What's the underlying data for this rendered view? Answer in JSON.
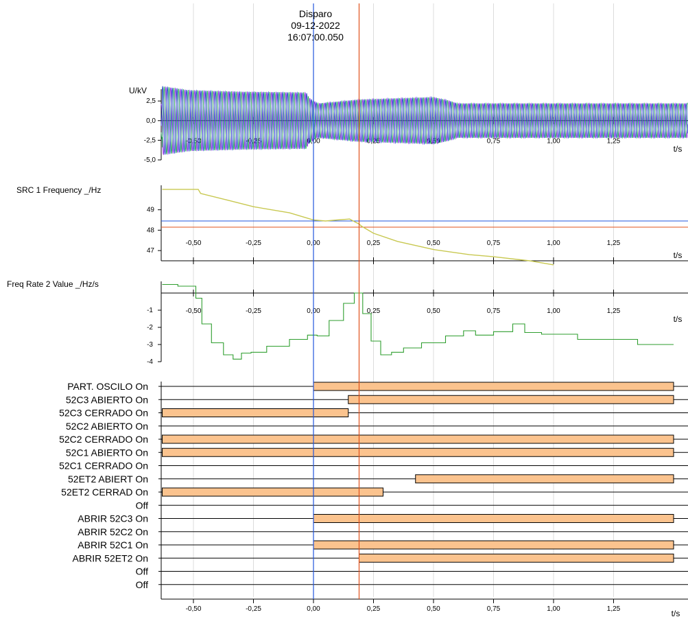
{
  "trigger": {
    "label": "Disparo",
    "date": "09-12-2022",
    "time": "16:07:00.050"
  },
  "x_unit": "t/s",
  "x_ticks": [
    "-0,50",
    "-0,25",
    "0,00",
    "0,25",
    "0,50",
    "0,75",
    "1,00",
    "1,25"
  ],
  "colors": {
    "cursor_blue": "#2255dd",
    "cursor_red": "#e0501a",
    "voltage_a": "#8a2be2",
    "voltage_b": "#22aa55",
    "voltage_c": "#2244cc",
    "frequency": "#c8c850",
    "freq_rate": "#2e9e2e",
    "digital_bar": "#fbc38e",
    "grid": "#dcdcdc"
  },
  "chart_data": [
    {
      "type": "line",
      "ylabel": "U/kV",
      "xlabel": "t/s",
      "ylim": [
        -5.0,
        4.0
      ],
      "y_ticks": [
        {
          "v": 2.5,
          "label": "2,5"
        },
        {
          "v": 0.0,
          "label": "0,0"
        },
        {
          "v": -2.5,
          "label": "-2,5"
        },
        {
          "v": -5.0,
          "label": "-5,0"
        }
      ],
      "cursors": [
        0.0,
        0.19
      ],
      "envelope": {
        "t": [
          -0.63,
          -0.52,
          -0.3,
          -0.03,
          -0.02,
          0.0,
          0.02,
          0.19,
          0.5,
          0.56,
          0.6,
          1.5
        ],
        "amp": [
          4.4,
          3.9,
          3.7,
          3.6,
          3.0,
          2.5,
          2.2,
          2.7,
          3.0,
          2.6,
          2.2,
          2.2
        ]
      },
      "series": []
    },
    {
      "type": "line",
      "ylabel": "SRC 1  Frequency _/Hz",
      "xlabel": "t/s",
      "ylim": [
        46.5,
        50.2
      ],
      "y_ticks": [
        {
          "v": 49,
          "label": "49"
        },
        {
          "v": 48,
          "label": "48"
        },
        {
          "v": 47,
          "label": "47"
        }
      ],
      "cursors": [
        0.0,
        0.19
      ],
      "hlines": [
        48.45,
        48.15
      ],
      "x": [
        -0.63,
        -0.48,
        -0.47,
        -0.35,
        -0.25,
        -0.1,
        0.0,
        0.05,
        0.1,
        0.15,
        0.19,
        0.2,
        0.25,
        0.35,
        0.5,
        0.65,
        0.75,
        0.9,
        1.0
      ],
      "series": [
        {
          "values": [
            50.0,
            50.0,
            49.8,
            49.45,
            49.15,
            48.85,
            48.5,
            48.45,
            48.5,
            48.55,
            48.3,
            48.2,
            47.85,
            47.45,
            47.05,
            46.8,
            46.7,
            46.5,
            46.3
          ]
        }
      ]
    },
    {
      "type": "line",
      "ylabel": "Freq Rate 2 Value _/Hz/s",
      "xlabel": "t/s",
      "ylim": [
        -4.0,
        0.75
      ],
      "y_ticks": [
        {
          "v": -1,
          "label": "-1"
        },
        {
          "v": -2,
          "label": "-2"
        },
        {
          "v": -3,
          "label": "-3"
        },
        {
          "v": -4,
          "label": "-4"
        }
      ],
      "cursors": [
        0.0,
        0.19
      ],
      "x": [
        -0.63,
        -0.5,
        -0.48,
        -0.45,
        -0.4,
        -0.35,
        -0.32,
        -0.28,
        -0.24,
        -0.15,
        -0.05,
        0.0,
        0.03,
        0.1,
        0.15,
        0.19,
        0.22,
        0.26,
        0.3,
        0.35,
        0.4,
        0.5,
        0.6,
        0.65,
        0.7,
        0.8,
        0.86,
        0.9,
        1.0,
        1.2,
        1.5
      ],
      "series": [
        {
          "values": [
            0.5,
            0.4,
            -0.3,
            -1.8,
            -2.9,
            -3.6,
            -3.85,
            -3.5,
            -3.45,
            -3.1,
            -2.7,
            -2.45,
            -2.5,
            -1.6,
            -0.6,
            0.0,
            -1.2,
            -2.8,
            -3.6,
            -3.45,
            -3.2,
            -2.9,
            -2.5,
            -2.2,
            -2.45,
            -2.25,
            -1.8,
            -2.3,
            -2.4,
            -2.7,
            -3.0
          ]
        }
      ]
    },
    {
      "type": "bar",
      "title": "",
      "channels": [
        {
          "label": "PART. OSCILO On",
          "on_from": 0.0,
          "on_to": 1.5
        },
        {
          "label": "52C3 ABIERTO On",
          "on_from": 0.145,
          "on_to": 1.5
        },
        {
          "label": "52C3 CERRADO On",
          "on_from": -0.63,
          "on_to": 0.145
        },
        {
          "label": "52C2 ABIERTO On",
          "on_from": null,
          "on_to": null
        },
        {
          "label": "52C2 CERRADO On",
          "on_from": -0.63,
          "on_to": 1.5
        },
        {
          "label": "52C1 ABIERTO On",
          "on_from": -0.63,
          "on_to": 1.5
        },
        {
          "label": "52C1 CERRADO On",
          "on_from": null,
          "on_to": null
        },
        {
          "label": "52ET2 ABIERT On",
          "on_from": 0.425,
          "on_to": 1.5
        },
        {
          "label": "52ET2 CERRAD On",
          "on_from": -0.63,
          "on_to": 0.29
        },
        {
          "label": "Off",
          "on_from": null,
          "on_to": null
        },
        {
          "label": "ABRIR 52C3   On",
          "on_from": 0.0,
          "on_to": 1.5
        },
        {
          "label": "ABRIR 52C2   On",
          "on_from": null,
          "on_to": null
        },
        {
          "label": "ABRIR 52C1   On",
          "on_from": 0.0,
          "on_to": 1.5
        },
        {
          "label": "ABRIR 52ET2  On",
          "on_from": 0.19,
          "on_to": 1.5
        },
        {
          "label": "Off",
          "on_from": null,
          "on_to": null
        },
        {
          "label": "Off",
          "on_from": null,
          "on_to": null
        }
      ],
      "cursors": [
        0.0,
        0.19
      ]
    }
  ]
}
